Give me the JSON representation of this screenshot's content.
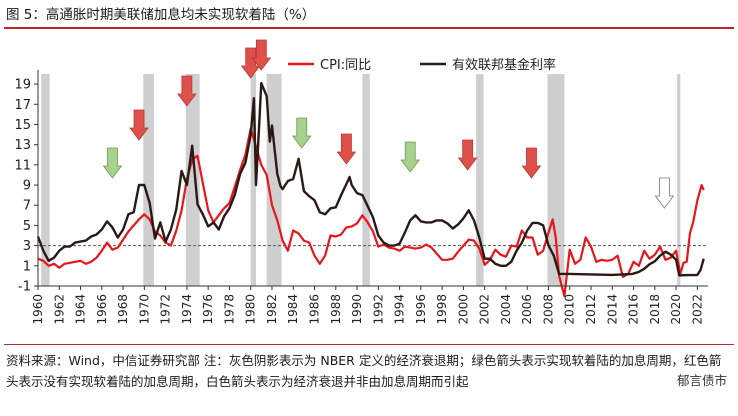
{
  "title": "图 5：高通胀时期美联储加息均未实现软着陆（%）",
  "note": "资料来源：Wind，中信证券研究部    注：灰色阴影表示为 NBER 定义的经济衰退期；绿色箭头表示实现软着陆的加息周期，红色箭头表示没有实现软着陆的加息周期，白色箭头表示为经济衰退并非由加息周期而引起",
  "watermark": "郁言债市",
  "colors": {
    "cpi": "#e8151c",
    "fed": "#2a1a16",
    "recession": "#cfcfcf",
    "arrow_green": "#a9d18e",
    "arrow_red": "#e0504a",
    "arrow_white": "#ffffff",
    "reference_line": "#555555"
  },
  "chart_data": {
    "type": "line",
    "title": "",
    "xlabel": "",
    "ylabel": "",
    "xlim": [
      1960,
      2023
    ],
    "ylim": [
      -1,
      20
    ],
    "y_ticks": [
      -1,
      1,
      3,
      5,
      7,
      9,
      11,
      13,
      15,
      17,
      19
    ],
    "x_ticks": [
      1960,
      1962,
      1964,
      1966,
      1968,
      1970,
      1972,
      1974,
      1976,
      1978,
      1980,
      1982,
      1984,
      1986,
      1988,
      1990,
      1992,
      1994,
      1996,
      1998,
      2000,
      2002,
      2004,
      2006,
      2008,
      2010,
      2012,
      2014,
      2016,
      2018,
      2020,
      2022
    ],
    "reference_line": {
      "y": 3,
      "style": "dashed"
    },
    "legend": {
      "position": "top-center",
      "entries": [
        "CPI:同比",
        "有效联邦基金利率"
      ]
    },
    "recessions": [
      [
        1960.3,
        1961.1
      ],
      [
        1969.9,
        1970.9
      ],
      [
        1973.9,
        1975.2
      ],
      [
        1980.0,
        1980.5
      ],
      [
        1981.5,
        1982.9
      ],
      [
        1990.5,
        1991.2
      ],
      [
        2001.2,
        2001.9
      ],
      [
        2007.9,
        2009.5
      ],
      [
        2020.1,
        2020.4
      ]
    ],
    "arrows": [
      {
        "x": 1967.0,
        "type": "green"
      },
      {
        "x": 1969.5,
        "type": "red"
      },
      {
        "x": 1974.0,
        "type": "red"
      },
      {
        "x": 1980.0,
        "type": "red"
      },
      {
        "x": 1981.0,
        "type": "red"
      },
      {
        "x": 1984.8,
        "type": "green"
      },
      {
        "x": 1989.0,
        "type": "red"
      },
      {
        "x": 1995.0,
        "type": "green"
      },
      {
        "x": 2000.4,
        "type": "red"
      },
      {
        "x": 2006.4,
        "type": "red"
      },
      {
        "x": 2018.9,
        "type": "white"
      }
    ],
    "series": [
      {
        "name": "CPI:同比",
        "color": "#e8151c",
        "points": [
          [
            1960,
            1.7
          ],
          [
            1960.5,
            1.5
          ],
          [
            1961,
            1.0
          ],
          [
            1961.5,
            1.2
          ],
          [
            1962,
            0.8
          ],
          [
            1962.5,
            1.2
          ],
          [
            1963,
            1.3
          ],
          [
            1963.5,
            1.4
          ],
          [
            1964,
            1.5
          ],
          [
            1964.5,
            1.2
          ],
          [
            1965,
            1.4
          ],
          [
            1965.5,
            1.8
          ],
          [
            1966,
            2.5
          ],
          [
            1966.5,
            3.3
          ],
          [
            1967,
            2.6
          ],
          [
            1967.5,
            2.8
          ],
          [
            1968,
            3.6
          ],
          [
            1968.5,
            4.4
          ],
          [
            1969,
            5.0
          ],
          [
            1969.5,
            5.6
          ],
          [
            1970,
            6.1
          ],
          [
            1970.5,
            5.6
          ],
          [
            1971,
            4.4
          ],
          [
            1971.5,
            4.0
          ],
          [
            1972,
            3.3
          ],
          [
            1972.5,
            3.0
          ],
          [
            1973,
            4.5
          ],
          [
            1973.5,
            6.5
          ],
          [
            1974,
            9.6
          ],
          [
            1974.5,
            11.5
          ],
          [
            1975,
            11.9
          ],
          [
            1975.5,
            9.2
          ],
          [
            1976,
            6.5
          ],
          [
            1976.5,
            5.3
          ],
          [
            1977,
            6.0
          ],
          [
            1977.5,
            6.7
          ],
          [
            1978,
            7.2
          ],
          [
            1978.5,
            8.8
          ],
          [
            1979,
            10.5
          ],
          [
            1979.5,
            12.0
          ],
          [
            1980,
            14.6
          ],
          [
            1980.5,
            12.8
          ],
          [
            1981,
            11.0
          ],
          [
            1981.5,
            10.0
          ],
          [
            1982,
            7.0
          ],
          [
            1982.5,
            5.5
          ],
          [
            1983,
            3.5
          ],
          [
            1983.5,
            2.5
          ],
          [
            1984,
            4.5
          ],
          [
            1984.5,
            4.2
          ],
          [
            1985,
            3.5
          ],
          [
            1985.5,
            3.3
          ],
          [
            1986,
            2.0
          ],
          [
            1986.5,
            1.2
          ],
          [
            1987,
            2.0
          ],
          [
            1987.5,
            4.0
          ],
          [
            1988,
            3.9
          ],
          [
            1988.5,
            4.1
          ],
          [
            1989,
            4.8
          ],
          [
            1989.5,
            4.9
          ],
          [
            1990,
            5.2
          ],
          [
            1990.5,
            6.0
          ],
          [
            1991,
            5.3
          ],
          [
            1991.5,
            4.4
          ],
          [
            1992,
            2.9
          ],
          [
            1992.5,
            3.1
          ],
          [
            1993,
            2.8
          ],
          [
            1993.5,
            2.7
          ],
          [
            1994,
            2.5
          ],
          [
            1994.5,
            2.9
          ],
          [
            1995,
            2.8
          ],
          [
            1995.5,
            2.7
          ],
          [
            1996,
            2.8
          ],
          [
            1996.5,
            3.1
          ],
          [
            1997,
            2.8
          ],
          [
            1997.5,
            2.2
          ],
          [
            1998,
            1.6
          ],
          [
            1998.5,
            1.6
          ],
          [
            1999,
            1.7
          ],
          [
            1999.5,
            2.4
          ],
          [
            2000,
            3.0
          ],
          [
            2000.5,
            3.6
          ],
          [
            2001,
            3.5
          ],
          [
            2001.5,
            2.7
          ],
          [
            2002,
            1.1
          ],
          [
            2002.5,
            1.6
          ],
          [
            2003,
            2.6
          ],
          [
            2003.5,
            2.1
          ],
          [
            2004,
            1.9
          ],
          [
            2004.5,
            3.0
          ],
          [
            2005,
            2.9
          ],
          [
            2005.5,
            4.5
          ],
          [
            2006,
            3.8
          ],
          [
            2006.5,
            3.8
          ],
          [
            2007,
            2.1
          ],
          [
            2007.5,
            2.5
          ],
          [
            2008,
            4.3
          ],
          [
            2008.4,
            5.6
          ],
          [
            2008.7,
            3.7
          ],
          [
            2009,
            0.0
          ],
          [
            2009.5,
            -2.0
          ],
          [
            2010,
            2.6
          ],
          [
            2010.5,
            1.2
          ],
          [
            2011,
            1.6
          ],
          [
            2011.5,
            3.8
          ],
          [
            2012,
            2.9
          ],
          [
            2012.5,
            1.4
          ],
          [
            2013,
            1.6
          ],
          [
            2013.5,
            1.5
          ],
          [
            2014,
            1.6
          ],
          [
            2014.5,
            2.0
          ],
          [
            2015,
            -0.1
          ],
          [
            2015.5,
            0.2
          ],
          [
            2016,
            1.4
          ],
          [
            2016.5,
            1.0
          ],
          [
            2017,
            2.5
          ],
          [
            2017.5,
            1.7
          ],
          [
            2018,
            2.1
          ],
          [
            2018.5,
            2.9
          ],
          [
            2019,
            1.6
          ],
          [
            2019.5,
            1.8
          ],
          [
            2020,
            2.5
          ],
          [
            2020.4,
            0.2
          ],
          [
            2020.7,
            1.3
          ],
          [
            2021,
            1.4
          ],
          [
            2021.3,
            4.2
          ],
          [
            2021.6,
            5.3
          ],
          [
            2022,
            7.5
          ],
          [
            2022.4,
            9.0
          ],
          [
            2022.6,
            8.5
          ]
        ]
      },
      {
        "name": "有效联邦基金利率",
        "color": "#2a1a16",
        "points": [
          [
            1960,
            3.9
          ],
          [
            1960.5,
            2.5
          ],
          [
            1961,
            1.5
          ],
          [
            1961.5,
            1.8
          ],
          [
            1962,
            2.5
          ],
          [
            1962.5,
            2.9
          ],
          [
            1963,
            2.9
          ],
          [
            1963.5,
            3.3
          ],
          [
            1964,
            3.4
          ],
          [
            1964.5,
            3.5
          ],
          [
            1965,
            3.9
          ],
          [
            1965.5,
            4.1
          ],
          [
            1966,
            4.6
          ],
          [
            1966.5,
            5.4
          ],
          [
            1967,
            4.8
          ],
          [
            1967.5,
            3.8
          ],
          [
            1968,
            4.6
          ],
          [
            1968.5,
            6.1
          ],
          [
            1969,
            6.3
          ],
          [
            1969.5,
            9.0
          ],
          [
            1970,
            9.0
          ],
          [
            1970.5,
            7.2
          ],
          [
            1971,
            3.7
          ],
          [
            1971.5,
            5.3
          ],
          [
            1972,
            3.4
          ],
          [
            1972.5,
            4.6
          ],
          [
            1973,
            6.6
          ],
          [
            1973.5,
            10.4
          ],
          [
            1974,
            9.0
          ],
          [
            1974.5,
            12.9
          ],
          [
            1975,
            7.1
          ],
          [
            1975.5,
            6.1
          ],
          [
            1976,
            4.9
          ],
          [
            1976.5,
            5.3
          ],
          [
            1977,
            4.6
          ],
          [
            1977.5,
            5.9
          ],
          [
            1978,
            6.7
          ],
          [
            1978.5,
            8.0
          ],
          [
            1979,
            10.1
          ],
          [
            1979.5,
            11.2
          ],
          [
            1980,
            14.0
          ],
          [
            1980.3,
            17.6
          ],
          [
            1980.5,
            9.0
          ],
          [
            1980.8,
            15.0
          ],
          [
            1981,
            19.1
          ],
          [
            1981.5,
            17.8
          ],
          [
            1981.8,
            13.3
          ],
          [
            1982,
            14.9
          ],
          [
            1982.5,
            10.1
          ],
          [
            1982.8,
            8.9
          ],
          [
            1983,
            8.6
          ],
          [
            1983.5,
            9.4
          ],
          [
            1984,
            9.6
          ],
          [
            1984.5,
            11.6
          ],
          [
            1985,
            8.4
          ],
          [
            1985.5,
            7.9
          ],
          [
            1986,
            7.5
          ],
          [
            1986.5,
            6.3
          ],
          [
            1987,
            6.1
          ],
          [
            1987.5,
            6.7
          ],
          [
            1988,
            6.8
          ],
          [
            1988.5,
            8.0
          ],
          [
            1989,
            9.1
          ],
          [
            1989.3,
            9.8
          ],
          [
            1989.5,
            9.0
          ],
          [
            1990,
            8.2
          ],
          [
            1990.5,
            8.0
          ],
          [
            1991,
            6.9
          ],
          [
            1991.5,
            5.8
          ],
          [
            1992,
            4.0
          ],
          [
            1992.5,
            3.3
          ],
          [
            1993,
            3.0
          ],
          [
            1993.5,
            3.0
          ],
          [
            1994,
            3.2
          ],
          [
            1994.5,
            4.3
          ],
          [
            1995,
            5.5
          ],
          [
            1995.5,
            6.0
          ],
          [
            1996,
            5.4
          ],
          [
            1996.5,
            5.3
          ],
          [
            1997,
            5.3
          ],
          [
            1997.5,
            5.5
          ],
          [
            1998,
            5.5
          ],
          [
            1998.5,
            5.2
          ],
          [
            1999,
            4.7
          ],
          [
            1999.5,
            5.1
          ],
          [
            2000,
            5.7
          ],
          [
            2000.5,
            6.5
          ],
          [
            2001,
            5.5
          ],
          [
            2001.5,
            3.8
          ],
          [
            2002,
            1.7
          ],
          [
            2002.5,
            1.7
          ],
          [
            2003,
            1.2
          ],
          [
            2003.5,
            1.0
          ],
          [
            2004,
            1.0
          ],
          [
            2004.5,
            1.4
          ],
          [
            2005,
            2.5
          ],
          [
            2005.5,
            3.3
          ],
          [
            2006,
            4.5
          ],
          [
            2006.5,
            5.25
          ],
          [
            2007,
            5.25
          ],
          [
            2007.5,
            5.0
          ],
          [
            2008,
            3.0
          ],
          [
            2008.5,
            2.0
          ],
          [
            2009,
            0.2
          ],
          [
            2010,
            0.2
          ],
          [
            2012,
            0.15
          ],
          [
            2014,
            0.1
          ],
          [
            2015.9,
            0.2
          ],
          [
            2016.5,
            0.4
          ],
          [
            2017,
            0.7
          ],
          [
            2017.5,
            1.15
          ],
          [
            2018,
            1.45
          ],
          [
            2018.5,
            2.0
          ],
          [
            2019,
            2.4
          ],
          [
            2019.5,
            2.1
          ],
          [
            2020,
            1.6
          ],
          [
            2020.3,
            0.05
          ],
          [
            2021,
            0.08
          ],
          [
            2021.8,
            0.08
          ],
          [
            2022,
            0.1
          ],
          [
            2022.3,
            0.6
          ],
          [
            2022.6,
            1.7
          ]
        ]
      }
    ]
  }
}
